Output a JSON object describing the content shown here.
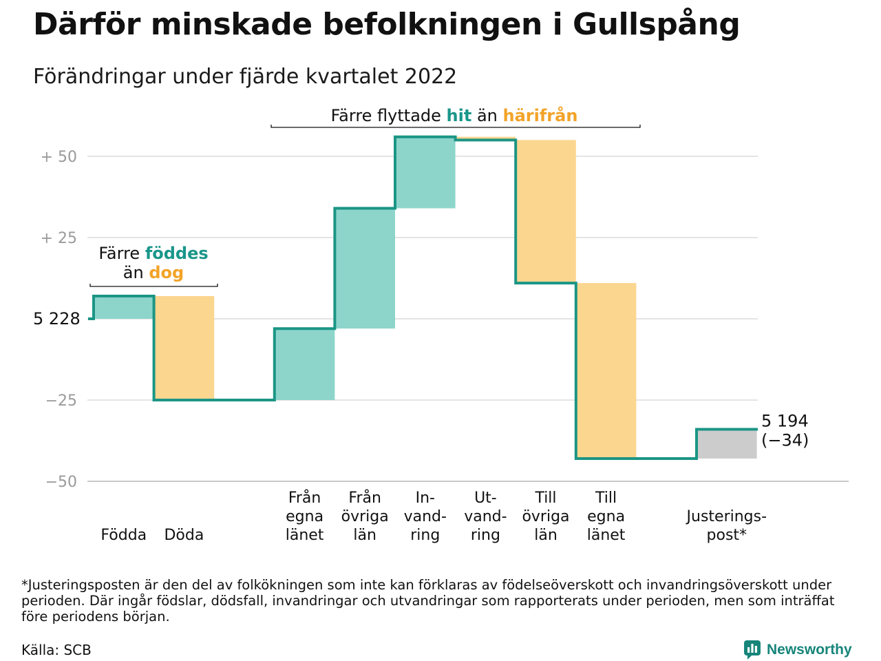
{
  "title": "Därför minskade befolkningen i Gullspång",
  "subtitle": "Förändringar under fjärde kvartalet 2022",
  "chart_data": {
    "type": "waterfall",
    "start": {
      "value": 5228,
      "label": "5 228"
    },
    "end": {
      "value": 5194,
      "label": "5 194",
      "change_label": "(−34)"
    },
    "categories": [
      {
        "label": [
          "Födda"
        ],
        "value": 7,
        "kind": "inflow"
      },
      {
        "label": [
          "Döda"
        ],
        "value": -32,
        "kind": "outflow"
      },
      {
        "label": [],
        "value": 0,
        "kind": "gap"
      },
      {
        "label": [
          "Från",
          "egna",
          "länet"
        ],
        "value": 22,
        "kind": "inflow"
      },
      {
        "label": [
          "Från",
          "övriga",
          "län"
        ],
        "value": 37,
        "kind": "inflow"
      },
      {
        "label": [
          "In-",
          "vand-",
          "ring"
        ],
        "value": 22,
        "kind": "inflow"
      },
      {
        "label": [
          "Ut-",
          "vand-",
          "ring"
        ],
        "value": -1,
        "kind": "outflow"
      },
      {
        "label": [
          "Till",
          "övriga",
          "län"
        ],
        "value": -44,
        "kind": "outflow"
      },
      {
        "label": [
          "Till",
          "egna",
          "länet"
        ],
        "value": -54,
        "kind": "outflow"
      },
      {
        "label": [],
        "value": 0,
        "kind": "gap"
      },
      {
        "label": [
          "Justerings-",
          "post*"
        ],
        "value": 9,
        "kind": "adjustment"
      }
    ],
    "yticks": [
      {
        "value": 50,
        "label": "+ 50"
      },
      {
        "value": 25,
        "label": "+ 25"
      },
      {
        "value": -25,
        "label": "−25"
      },
      {
        "value": -50,
        "label": "−50"
      }
    ],
    "ylim": [
      -50,
      55
    ],
    "grid": true,
    "colors": {
      "inflow": "#8dd5cb",
      "outflow": "#fbd68f",
      "adjustment": "#cccccc",
      "line": "#1b9585",
      "grid": "#e4e4e4",
      "axis": "#c8c8c8"
    },
    "annotations": [
      {
        "parts": [
          [
            {
              "text": "Färre ",
              "style": "plain"
            },
            {
              "text": "föddes",
              "style": "green"
            }
          ],
          [
            {
              "text": "än ",
              "style": "plain"
            },
            {
              "text": "dog",
              "style": "orange"
            }
          ]
        ]
      },
      {
        "parts": [
          [
            {
              "text": "Färre flyttade ",
              "style": "plain"
            },
            {
              "text": "hit",
              "style": "green"
            },
            {
              "text": " än ",
              "style": "plain"
            },
            {
              "text": "härifrån",
              "style": "orange"
            }
          ]
        ]
      }
    ]
  },
  "footnote": "*Justeringsposten är den del av folkökningen som inte kan förklaras av födelseöverskott och invandringsöverskott under perioden. Där ingår födslar, dödsfall, invandringar och utvandringar som rapporterats under perioden, men som inträffat före periodens början.",
  "source": "Källa: SCB",
  "brand": {
    "name": "Newsworthy",
    "icon": "newsworthy-logo-icon"
  }
}
